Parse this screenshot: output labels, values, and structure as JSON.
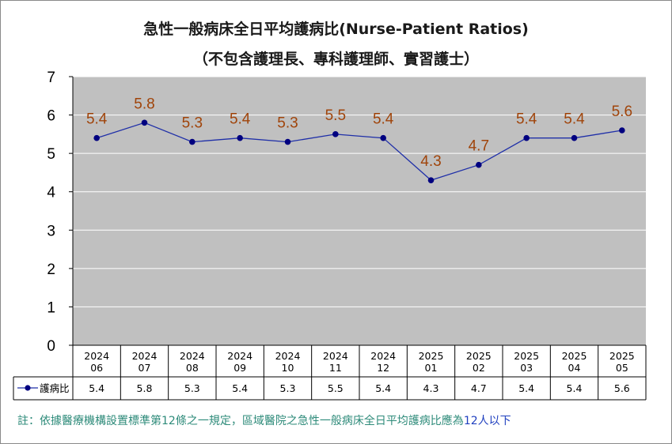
{
  "chart_data": {
    "type": "line",
    "title": "急性一般病床全日平均護病比(Nurse-Patient Ratios)",
    "subtitle": "（不包含護理長、專科護理師、實習護士）",
    "categories": [
      [
        "2024",
        "06"
      ],
      [
        "2024",
        "07"
      ],
      [
        "2024",
        "08"
      ],
      [
        "2024",
        "09"
      ],
      [
        "2024",
        "10"
      ],
      [
        "2024",
        "11"
      ],
      [
        "2024",
        "12"
      ],
      [
        "2025",
        "01"
      ],
      [
        "2025",
        "02"
      ],
      [
        "2025",
        "03"
      ],
      [
        "2025",
        "04"
      ],
      [
        "2025",
        "05"
      ]
    ],
    "series": [
      {
        "name": "護病比",
        "values": [
          5.4,
          5.8,
          5.3,
          5.4,
          5.3,
          5.5,
          5.4,
          4.3,
          4.7,
          5.4,
          5.4,
          5.6
        ]
      }
    ],
    "ylim": [
      0,
      7
    ],
    "yticks": [
      "0",
      "1",
      "2",
      "3",
      "4",
      "5",
      "6",
      "7"
    ],
    "data_labels": true,
    "data_table": true,
    "grid": true,
    "colors": {
      "plot_bg": "#c0c0c0",
      "line": "#1f2fa8",
      "marker": "#000080",
      "data_label": "#a0440a",
      "note": "#2e8b7a",
      "note_highlight": "#1f3fbf"
    }
  },
  "note": {
    "prefix": "註：依據醫療機構設置標準第12條之一規定，區域醫院之急性一般病床全日平均護病比應為",
    "highlight": "12人以下"
  }
}
